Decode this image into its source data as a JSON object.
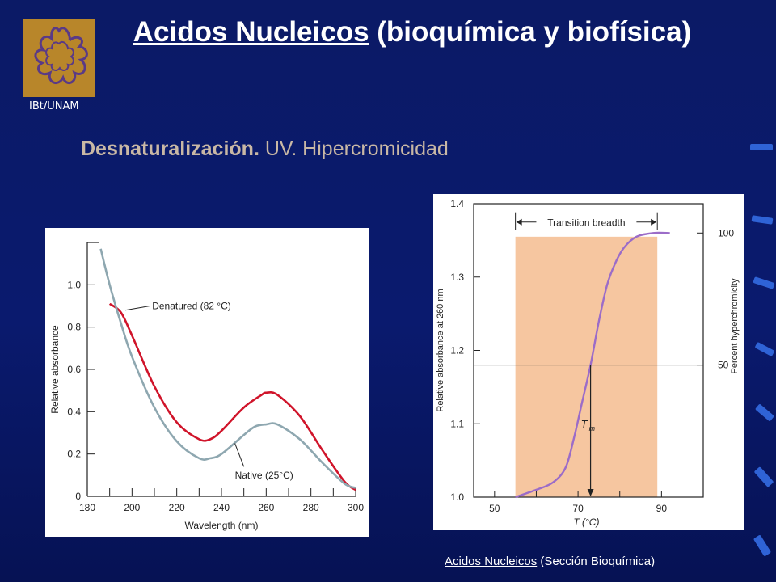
{
  "logo": {
    "label": "IBt/UNAM",
    "color": "#b8862a",
    "icon": "dna-ring-logo"
  },
  "title": {
    "link": "Acidos Nucleicos",
    "rest": " (bioquímica y biofísica)"
  },
  "subtitle": {
    "bold": "Desnaturalización.",
    "rest": " UV. Hipercromicidad"
  },
  "footer": {
    "link": "Acidos Nucleicos",
    "rest": " (Sección Bioquímica)"
  },
  "chart_data": [
    {
      "type": "line",
      "xlabel": "Wavelength (nm)",
      "ylabel": "Relative absorbance",
      "xlim": [
        180,
        300
      ],
      "ylim": [
        0,
        1.2
      ],
      "x_ticks": [
        "180",
        "200",
        "220",
        "240",
        "260",
        "280",
        "300"
      ],
      "y_ticks": [
        "0",
        "0.2",
        "0.4",
        "0.6",
        "0.8",
        "1.0"
      ],
      "series": [
        {
          "name": "Denatured (82 °C)",
          "color": "#d0142a",
          "points": [
            [
              190,
              0.91
            ],
            [
              195,
              0.87
            ],
            [
              200,
              0.76
            ],
            [
              210,
              0.52
            ],
            [
              220,
              0.35
            ],
            [
              230,
              0.27
            ],
            [
              235,
              0.27
            ],
            [
              240,
              0.31
            ],
            [
              250,
              0.42
            ],
            [
              258,
              0.48
            ],
            [
              260,
              0.49
            ],
            [
              265,
              0.48
            ],
            [
              275,
              0.38
            ],
            [
              285,
              0.22
            ],
            [
              295,
              0.07
            ],
            [
              300,
              0.03
            ]
          ]
        },
        {
          "name": "Native (25°C)",
          "color": "#8ea7b0",
          "points": [
            [
              186,
              1.17
            ],
            [
              190,
              1.0
            ],
            [
              195,
              0.82
            ],
            [
              200,
              0.66
            ],
            [
              210,
              0.42
            ],
            [
              220,
              0.26
            ],
            [
              230,
              0.18
            ],
            [
              235,
              0.18
            ],
            [
              240,
              0.2
            ],
            [
              250,
              0.29
            ],
            [
              255,
              0.33
            ],
            [
              260,
              0.34
            ],
            [
              265,
              0.34
            ],
            [
              275,
              0.27
            ],
            [
              285,
              0.16
            ],
            [
              295,
              0.06
            ],
            [
              300,
              0.04
            ]
          ]
        }
      ]
    },
    {
      "type": "line",
      "xlabel": "T (°C)",
      "ylabel": "Relative absorbance at 260 nm",
      "y2label": "Percent hyperchromicity",
      "xlim": [
        45,
        100
      ],
      "ylim": [
        1.0,
        1.4
      ],
      "x_ticks": [
        "50",
        "70",
        "90"
      ],
      "y_ticks": [
        "1.0",
        "1.1",
        "1.2",
        "1.3",
        "1.4"
      ],
      "y2_ticks": [
        "50",
        "100"
      ],
      "annotations": {
        "transition": "Transition breadth",
        "tm_main": "T",
        "tm_sub": "m"
      },
      "shaded_range": [
        55,
        89
      ],
      "tm": 73,
      "series": [
        {
          "color": "#9b6cc8",
          "points": [
            [
              55,
              1.0
            ],
            [
              60,
              1.01
            ],
            [
              64,
              1.02
            ],
            [
              67,
              1.04
            ],
            [
              69,
              1.08
            ],
            [
              71,
              1.13
            ],
            [
              73,
              1.18
            ],
            [
              75,
              1.24
            ],
            [
              77,
              1.29
            ],
            [
              79,
              1.32
            ],
            [
              81,
              1.34
            ],
            [
              84,
              1.355
            ],
            [
              88,
              1.36
            ],
            [
              92,
              1.36
            ]
          ]
        }
      ]
    }
  ]
}
